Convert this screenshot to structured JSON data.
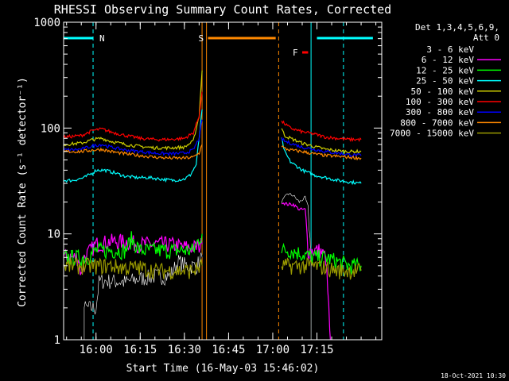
{
  "chart_data": {
    "type": "line",
    "title": "RHESSI Observing Summary Count Rates, Corrected",
    "xlabel": "Start Time (16-May-03 15:46:02)",
    "ylabel": "Corrected Count Rate (s⁻¹ detector⁻¹)",
    "y_scale": "log",
    "ylim": [
      1,
      1000
    ],
    "y_ticks": [
      {
        "value": 1,
        "label": "1"
      },
      {
        "value": 10,
        "label": "10"
      },
      {
        "value": 100,
        "label": "100"
      },
      {
        "value": 1000,
        "label": "1000"
      }
    ],
    "xlim_minutes": [
      -11,
      97
    ],
    "x_ticks": [
      {
        "value": 0,
        "label": "16:00"
      },
      {
        "value": 15,
        "label": "16:15"
      },
      {
        "value": 30,
        "label": "16:30"
      },
      {
        "value": 45,
        "label": "16:45"
      },
      {
        "value": 60,
        "label": "17:00"
      },
      {
        "value": 75,
        "label": "17:15"
      }
    ],
    "legend_placement": "top-right",
    "legend_header": [
      "Det 1,3,4,5,6,9,",
      "Att 0"
    ],
    "series": [
      {
        "name": "3 - 6 keV",
        "color": "#000000",
        "segments": [
          {
            "x": [
              -11,
              -5,
              -4,
              -4,
              0,
              1,
              2,
              5,
              10,
              15,
              20,
              25,
              28,
              31,
              34,
              36
            ],
            "y": [
              0.5,
              0.5,
              0.5,
              2,
              2,
              3.5,
              3.6,
              3.6,
              3.5,
              3.8,
              4,
              4,
              5.5,
              5,
              5,
              6
            ]
          },
          {
            "x": [
              63,
              65,
              67,
              69,
              71,
              72,
              73,
              73
            ],
            "y": [
              20,
              24,
              23,
              20,
              22,
              18,
              6,
              0.5
            ]
          }
        ]
      },
      {
        "name": "6 - 12 keV",
        "color": "#ff00ff",
        "segments": [
          {
            "x": [
              -11,
              -6,
              -5,
              -4,
              0,
              5,
              10,
              15,
              20,
              25,
              30,
              34,
              36
            ],
            "y": [
              6,
              6,
              4,
              6,
              8,
              8.5,
              8.5,
              8,
              8,
              8,
              7.5,
              7.5,
              8
            ]
          },
          {
            "x": [
              63,
              65,
              67,
              69,
              71,
              72,
              74,
              76,
              78,
              79,
              80
            ],
            "y": [
              20,
              19,
              19,
              17,
              17,
              7,
              7,
              7,
              6,
              2,
              0.5
            ]
          }
        ]
      },
      {
        "name": "12 - 25 keV",
        "color": "#00ff00",
        "segments": [
          {
            "x": [
              -11,
              -5,
              -3,
              0,
              5,
              10,
              12,
              15,
              20,
              25,
              30,
              33,
              35,
              36
            ],
            "y": [
              6,
              6,
              6,
              7,
              7,
              7,
              9,
              7,
              7,
              7,
              7,
              7,
              9,
              10
            ]
          },
          {
            "x": [
              63,
              66,
              70,
              74,
              78,
              82,
              86,
              90
            ],
            "y": [
              7,
              7,
              6.5,
              6,
              6,
              5.5,
              5,
              5
            ]
          }
        ]
      },
      {
        "name": "25 - 50 keV",
        "color": "#00ffff",
        "segments": [
          {
            "x": [
              -11,
              -8,
              -4,
              -1,
              0,
              3,
              6,
              10,
              14,
              18,
              22,
              26,
              30,
              32,
              34,
              35,
              36
            ],
            "y": [
              32,
              32,
              34,
              38,
              40,
              40,
              38,
              35,
              34,
              34,
              33,
              32,
              33,
              36,
              45,
              80,
              150
            ]
          },
          {
            "x": [
              63,
              64,
              66,
              70,
              74,
              78,
              82,
              86,
              90
            ],
            "y": [
              80,
              60,
              48,
              40,
              36,
              34,
              32,
              31,
              30
            ]
          }
        ]
      },
      {
        "name": "50 - 100 keV",
        "color": "#cccc00",
        "segments": [
          {
            "x": [
              -11,
              -5,
              -1,
              2,
              5,
              10,
              15,
              20,
              25,
              30,
              33,
              35,
              36
            ],
            "y": [
              70,
              72,
              78,
              80,
              75,
              70,
              67,
              65,
              65,
              66,
              75,
              130,
              350
            ]
          },
          {
            "x": [
              63,
              64,
              66,
              70,
              74,
              78,
              82,
              86,
              90
            ],
            "y": [
              100,
              85,
              80,
              72,
              67,
              63,
              61,
              60,
              60
            ]
          }
        ]
      },
      {
        "name": "100 - 300 keV",
        "color": "#ff0000",
        "segments": [
          {
            "x": [
              -11,
              -5,
              -1,
              2,
              5,
              10,
              15,
              20,
              25,
              30,
              33,
              35,
              36
            ],
            "y": [
              82,
              85,
              95,
              98,
              92,
              85,
              80,
              78,
              78,
              80,
              90,
              130,
              220
            ]
          },
          {
            "x": [
              63,
              64,
              66,
              70,
              74,
              78,
              82,
              86,
              90
            ],
            "y": [
              115,
              110,
              100,
              92,
              88,
              82,
              80,
              78,
              78
            ]
          }
        ]
      },
      {
        "name": "300 - 800 keV",
        "color": "#0000ff",
        "segments": [
          {
            "x": [
              -11,
              -5,
              -1,
              2,
              5,
              10,
              15,
              20,
              25,
              30,
              33,
              35,
              36
            ],
            "y": [
              62,
              63,
              68,
              70,
              66,
              62,
              60,
              58,
              57,
              58,
              62,
              80,
              120
            ]
          },
          {
            "x": [
              63,
              64,
              66,
              70,
              74,
              78,
              82,
              86,
              90
            ],
            "y": [
              80,
              75,
              72,
              66,
              63,
              60,
              58,
              56,
              55
            ]
          }
        ]
      },
      {
        "name": "800 - 7000 keV",
        "color": "#ff8800",
        "segments": [
          {
            "x": [
              -11,
              -5,
              -1,
              2,
              5,
              10,
              15,
              20,
              25,
              30,
              33,
              35,
              36
            ],
            "y": [
              60,
              60,
              62,
              63,
              60,
              57,
              55,
              53,
              52,
              52,
              53,
              58,
              70
            ]
          },
          {
            "x": [
              63,
              64,
              66,
              70,
              74,
              78,
              82,
              86,
              90
            ],
            "y": [
              68,
              64,
              62,
              60,
              57,
              55,
              54,
              53,
              52
            ]
          }
        ]
      },
      {
        "name": "7000 - 15000 keV",
        "color": "#999900",
        "segments": [
          {
            "x": [
              -11,
              -5,
              0,
              5,
              10,
              15,
              20,
              25,
              30,
              33,
              36
            ],
            "y": [
              5,
              5,
              5,
              5,
              4.8,
              4.8,
              4.5,
              4.5,
              4.5,
              4.5,
              5
            ]
          },
          {
            "x": [
              63,
              66,
              70,
              74,
              78,
              82,
              86,
              90
            ],
            "y": [
              5,
              5,
              5,
              5,
              4.8,
              4.5,
              4.5,
              4.5
            ]
          }
        ]
      }
    ],
    "markers": [
      {
        "label": "N",
        "color": "#00ffff",
        "position": "top",
        "x_start": -11,
        "x_end": -1,
        "gap_end": 0
      },
      {
        "label": "S",
        "color": "#ff8800",
        "position": "top",
        "x_start": 38,
        "x_end": 61
      },
      {
        "label": "F",
        "color": "#ff0000",
        "position": "upper",
        "x_start": 70,
        "x_end": 72
      }
    ],
    "marker_lines": [
      {
        "x": -11,
        "color": "#00ffff",
        "style": "dashed"
      },
      {
        "x": -1,
        "color": "#00ffff",
        "style": "dashed"
      },
      {
        "x": 36,
        "color": "#ff8800",
        "style": "solid"
      },
      {
        "x": 37.5,
        "color": "#ff8800",
        "style": "solid"
      },
      {
        "x": 62,
        "color": "#ff8800",
        "style": "dashed"
      },
      {
        "x": 73,
        "color": "#00ffff",
        "style": "solid"
      },
      {
        "x": 84,
        "color": "#00ffff",
        "style": "dashed"
      }
    ],
    "footer": "18-Oct-2021 10:30"
  }
}
